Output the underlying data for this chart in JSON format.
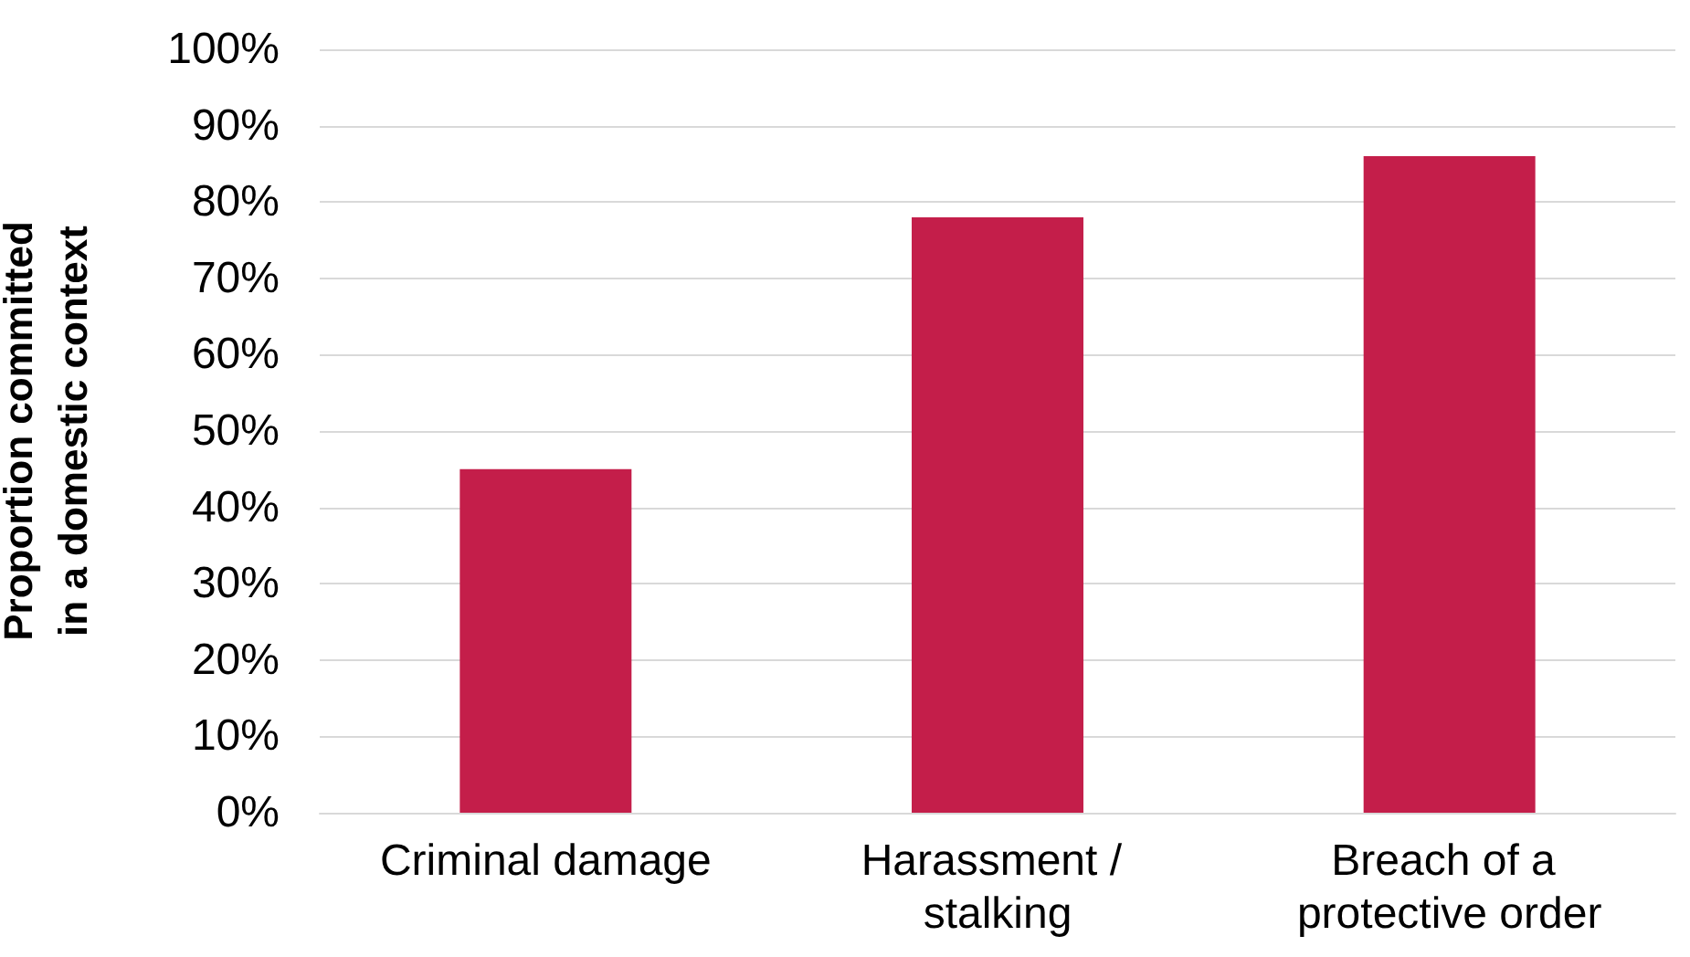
{
  "chart_data": {
    "type": "bar",
    "ylabel": "Proportion committed in a domestic context",
    "categories": [
      "Criminal damage",
      "Harassment / stalking",
      "Breach of a protective order"
    ],
    "values": [
      45,
      78,
      86
    ],
    "color": "#c41e4a",
    "ylim": [
      0,
      100
    ],
    "yticks": [
      {
        "value": 0,
        "label": "0%"
      },
      {
        "value": 10,
        "label": "10%"
      },
      {
        "value": 20,
        "label": "20%"
      },
      {
        "value": 30,
        "label": "30%"
      },
      {
        "value": 40,
        "label": "40%"
      },
      {
        "value": 50,
        "label": "50%"
      },
      {
        "value": 60,
        "label": "60%"
      },
      {
        "value": 70,
        "label": "70%"
      },
      {
        "value": 80,
        "label": "80%"
      },
      {
        "value": 90,
        "label": "90%"
      },
      {
        "value": 100,
        "label": "100%"
      }
    ],
    "grid": "y"
  }
}
